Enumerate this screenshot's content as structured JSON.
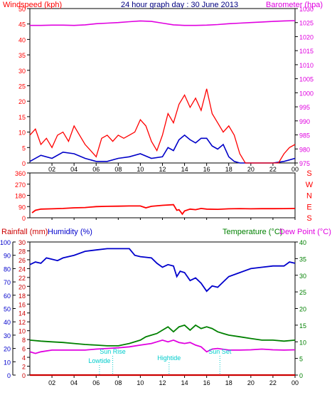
{
  "colors": {
    "wind": "#ff0000",
    "gust": "#ff0000",
    "avg_wind": "#0000c8",
    "barometer": "#e000e0",
    "direction": "#ff0000",
    "rainfall": "#cc0000",
    "humidity": "#0000cc",
    "temperature": "#008000",
    "dewpoint": "#e000e0",
    "tide": "#00cccc",
    "axis": "#000000"
  },
  "chart_data": [
    {
      "type": "line",
      "panel": "wind-barometer",
      "title": "24 hour graph day : 30 June 2013",
      "left_axis_label": "Windspeed (kph)",
      "right_axis_label": "Barometer (hpa)",
      "x_tick_labels": [
        "02",
        "04",
        "06",
        "08",
        "10",
        "12",
        "14",
        "16",
        "18",
        "20",
        "22",
        "00"
      ],
      "x_range_hours": [
        0,
        24
      ],
      "left_ylim": [
        0,
        50
      ],
      "left_ticks": [
        "0",
        "5",
        "10",
        "15",
        "20",
        "25",
        "30",
        "35",
        "40",
        "45",
        "50"
      ],
      "right_ylim": [
        975,
        1030
      ],
      "right_ticks": [
        "975",
        "980",
        "985",
        "990",
        "995",
        "1000",
        "1005",
        "1010",
        "1015",
        "1020",
        "1025",
        "1030"
      ],
      "series": [
        {
          "key": "barometer",
          "axis": "right",
          "x": [
            0,
            1,
            2,
            3,
            4,
            5,
            6,
            7,
            8,
            9,
            10,
            11,
            12,
            13,
            14,
            15,
            16,
            17,
            18,
            19,
            20,
            21,
            22,
            23,
            24
          ],
          "values": [
            1024,
            1024,
            1024.1,
            1024.1,
            1024,
            1024.2,
            1024.6,
            1024.8,
            1025,
            1025.3,
            1025.6,
            1025.4,
            1024.8,
            1024.2,
            1024,
            1024,
            1024.1,
            1024.3,
            1024.6,
            1024.8,
            1025,
            1025.2,
            1025.4,
            1025.6,
            1025.7
          ]
        },
        {
          "key": "avg_wind",
          "axis": "left",
          "x": [
            0,
            1,
            2,
            3,
            4,
            5,
            6,
            7,
            8,
            9,
            10,
            11,
            12,
            12.5,
            13,
            13.5,
            14,
            14.5,
            15,
            15.5,
            16,
            16.5,
            17,
            17.5,
            18,
            18.5,
            19,
            20,
            21,
            22,
            23,
            24
          ],
          "values": [
            0.5,
            2.5,
            1.5,
            3.5,
            3,
            1.5,
            0.5,
            0.5,
            1.5,
            2,
            3,
            1.5,
            2,
            5,
            4,
            7.5,
            9,
            7.5,
            6.5,
            8,
            8,
            5.5,
            4.5,
            6,
            2,
            0.5,
            0,
            0,
            0,
            0,
            0.5,
            1.5
          ]
        },
        {
          "key": "gust",
          "axis": "left",
          "x": [
            0,
            0.5,
            1,
            1.5,
            2,
            2.5,
            3,
            3.5,
            4,
            4.5,
            5,
            5.5,
            6,
            6.5,
            7,
            7.5,
            8,
            8.5,
            9,
            9.5,
            10,
            10.5,
            11,
            11.5,
            12,
            12.5,
            13,
            13.5,
            14,
            14.5,
            15,
            15.5,
            16,
            16.5,
            17,
            17.5,
            18,
            18.5,
            19,
            19.5,
            20,
            20.5,
            21,
            21.5,
            22,
            22.5,
            23,
            23.5,
            24
          ],
          "values": [
            9,
            11,
            6,
            8,
            5,
            9,
            10,
            7,
            12,
            9,
            6,
            4,
            2,
            8,
            9,
            7,
            9,
            8,
            9,
            10,
            14,
            12,
            7,
            4,
            9,
            16,
            13,
            19,
            22,
            18,
            21,
            17,
            24,
            16,
            13,
            10,
            12,
            9,
            3,
            0,
            0,
            0,
            0,
            0,
            0,
            0,
            3,
            5,
            6
          ]
        }
      ]
    },
    {
      "type": "line",
      "panel": "wind-direction",
      "left_ylim": [
        0,
        360
      ],
      "left_ticks": [
        "0",
        "90",
        "180",
        "270",
        "360"
      ],
      "right_labels": [
        "S",
        "E",
        "N",
        "W",
        "S"
      ],
      "series": [
        {
          "key": "direction",
          "x": [
            0.2,
            0.5,
            1,
            2,
            3,
            4,
            5,
            6,
            7,
            8,
            9,
            10,
            10.5,
            11,
            12,
            13,
            13.3,
            13.5,
            13.8,
            14,
            14.5,
            15,
            15.5,
            16,
            17,
            18,
            19,
            20,
            21,
            22,
            23,
            24
          ],
          "values": [
            40,
            60,
            70,
            72,
            75,
            80,
            82,
            90,
            92,
            93,
            95,
            95,
            80,
            92,
            100,
            105,
            60,
            65,
            30,
            55,
            70,
            65,
            75,
            70,
            68,
            72,
            74,
            72,
            73,
            73,
            74,
            75
          ]
        }
      ]
    },
    {
      "type": "line",
      "panel": "rain-humidity-temperature",
      "labels": {
        "rainfall": "Rainfall (mm)",
        "humidity": "Humidity (%)",
        "temperature": "Temperature (°C)",
        "dewpoint": "Dew Point (°C)"
      },
      "humidity_ylim": [
        0,
        100
      ],
      "humidity_ticks": [
        "0",
        "10",
        "20",
        "30",
        "40",
        "50",
        "60",
        "70",
        "80",
        "90",
        "100"
      ],
      "rain_ylim": [
        0,
        30
      ],
      "rain_ticks": [
        "0",
        "2",
        "4",
        "6",
        "8",
        "10",
        "12",
        "14",
        "16",
        "18",
        "20",
        "22",
        "24",
        "26",
        "28",
        "30"
      ],
      "temp_ylim": [
        0,
        40
      ],
      "temp_ticks": [
        "0",
        "5",
        "10",
        "15",
        "20",
        "25",
        "30",
        "35",
        "40"
      ],
      "tide_labels": [
        {
          "text": "Lowtide",
          "hour": 6.3
        },
        {
          "text": "Sun Rise",
          "hour": 7.5
        },
        {
          "text": "Hightide",
          "hour": 12.6
        },
        {
          "text": "Sun Set",
          "hour": 17.2
        }
      ],
      "series": [
        {
          "key": "humidity",
          "axis": "humidity",
          "x": [
            0,
            0.5,
            1,
            1.5,
            2,
            2.5,
            3,
            4,
            5,
            6,
            7,
            8,
            9,
            9.5,
            10,
            11,
            11.5,
            12,
            12.5,
            13,
            13.3,
            13.6,
            14,
            14.5,
            15,
            15.5,
            16,
            16.5,
            17,
            17.5,
            18,
            19,
            20,
            21,
            22,
            23,
            23.5,
            24
          ],
          "values": [
            83,
            85,
            84,
            88,
            87,
            86,
            88,
            90,
            93,
            94,
            95,
            95,
            95,
            90,
            89,
            88,
            84,
            81,
            83,
            82,
            74,
            78,
            77,
            71,
            73,
            69,
            63,
            67,
            66,
            70,
            74,
            77,
            80,
            81,
            82,
            82,
            85,
            84
          ]
        },
        {
          "key": "temperature",
          "axis": "temp",
          "x": [
            0,
            1,
            2,
            3,
            4,
            5,
            6,
            7,
            8,
            9,
            10,
            10.5,
            11,
            11.5,
            12,
            12.5,
            13,
            13.5,
            14,
            14.5,
            15,
            15.5,
            16,
            16.5,
            17,
            17.5,
            18,
            19,
            20,
            21,
            22,
            23,
            24
          ],
          "values": [
            10.5,
            10.2,
            10,
            9.8,
            9.5,
            9.2,
            9,
            8.8,
            8.8,
            9.5,
            10.5,
            11.5,
            12,
            12.5,
            13.5,
            14.5,
            13,
            14.5,
            15,
            13.5,
            15,
            14,
            14.5,
            14,
            13,
            12.5,
            12,
            11.5,
            11,
            10.5,
            10.5,
            10.2,
            10.5
          ]
        },
        {
          "key": "dewpoint",
          "axis": "temp",
          "x": [
            0,
            0.5,
            1,
            2,
            3,
            4,
            5,
            6,
            7,
            8,
            9,
            10,
            11,
            11.5,
            12,
            12.5,
            13,
            13.5,
            14,
            14.5,
            15,
            15.5,
            16,
            16.5,
            17,
            18,
            19,
            20,
            21,
            22,
            23,
            24
          ],
          "values": [
            7,
            6.5,
            7,
            7.5,
            7.5,
            7.5,
            7.5,
            7.8,
            8,
            8.2,
            8.5,
            9,
            9.5,
            10,
            10.5,
            10,
            10.5,
            9.8,
            9.5,
            9.8,
            9,
            8.5,
            7,
            7.8,
            8,
            7.5,
            7.5,
            7.6,
            7.8,
            7.6,
            7.5,
            7.6
          ]
        },
        {
          "key": "rainfall",
          "axis": "rain",
          "x": [
            0,
            24
          ],
          "values": [
            0,
            0
          ]
        }
      ]
    }
  ]
}
